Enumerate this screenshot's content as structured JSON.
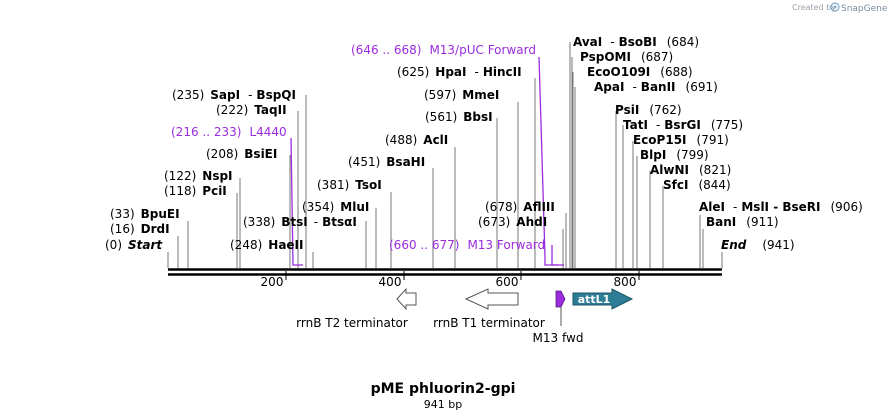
{
  "header": {
    "credit_text": "Created by",
    "brand": "SnapGene"
  },
  "plasmid": {
    "name": "pME phluorin2-gpi",
    "length_label": "941 bp"
  },
  "ruler": {
    "ticks": [
      "200",
      "400",
      "600",
      "800"
    ]
  },
  "enzymes": [
    {
      "pos": "(0)",
      "name": "Start",
      "suffix": "",
      "sep": ""
    },
    {
      "pos": "(16)",
      "name": "DrdI",
      "suffix": "",
      "sep": ""
    },
    {
      "pos": "(33)",
      "name": "BpuEI",
      "suffix": "",
      "sep": ""
    },
    {
      "pos": "(118)",
      "name": "PciI",
      "suffix": "",
      "sep": ""
    },
    {
      "pos": "(122)",
      "name": "NspI",
      "suffix": "",
      "sep": ""
    },
    {
      "pos": "(208)",
      "name": "BsiEI",
      "suffix": "",
      "sep": ""
    },
    {
      "pos": "(222)",
      "name": "TaqII",
      "suffix": "",
      "sep": ""
    },
    {
      "pos": "(235)",
      "name": "SapI",
      "suffix": "BspQI",
      "sep": "-"
    },
    {
      "pos": "(248)",
      "name": "HaeII",
      "suffix": "",
      "sep": ""
    },
    {
      "pos": "(338)",
      "name": "BtsI",
      "suffix": "BtsαI",
      "sep": "-"
    },
    {
      "pos": "(354)",
      "name": "MluI",
      "suffix": "",
      "sep": ""
    },
    {
      "pos": "(381)",
      "name": "TsoI",
      "suffix": "",
      "sep": ""
    },
    {
      "pos": "(451)",
      "name": "BsaHI",
      "suffix": "",
      "sep": ""
    },
    {
      "pos": "(488)",
      "name": "AclI",
      "suffix": "",
      "sep": ""
    },
    {
      "pos": "(561)",
      "name": "BbsI",
      "suffix": "",
      "sep": ""
    },
    {
      "pos": "(597)",
      "name": "MmeI",
      "suffix": "",
      "sep": ""
    },
    {
      "pos": "(625)",
      "name": "HpaI",
      "suffix": "HincII",
      "sep": "-"
    },
    {
      "pos": "(673)",
      "name": "AhdI",
      "suffix": "",
      "sep": ""
    },
    {
      "pos": "(678)",
      "name": "AflIII",
      "suffix": "",
      "sep": ""
    },
    {
      "pos": "(684)",
      "name": "AvaI",
      "suffix": "BsoBI",
      "sep": "-"
    },
    {
      "pos": "(687)",
      "name": "PspOMI",
      "suffix": "",
      "sep": ""
    },
    {
      "pos": "(688)",
      "name": "EcoO109I",
      "suffix": "",
      "sep": ""
    },
    {
      "pos": "(691)",
      "name": "ApaI",
      "suffix": "BanII",
      "sep": "-"
    },
    {
      "pos": "(762)",
      "name": "PsiI",
      "suffix": "",
      "sep": ""
    },
    {
      "pos": "(775)",
      "name": "TatI",
      "suffix": "BsrGI",
      "sep": "-"
    },
    {
      "pos": "(791)",
      "name": "EcoP15I",
      "suffix": "",
      "sep": ""
    },
    {
      "pos": "(799)",
      "name": "BlpI",
      "suffix": "",
      "sep": ""
    },
    {
      "pos": "(821)",
      "name": "AlwNI",
      "suffix": "",
      "sep": ""
    },
    {
      "pos": "(844)",
      "name": "SfcI",
      "suffix": "",
      "sep": ""
    },
    {
      "pos": "(906)",
      "name": "AleI",
      "suffix": "MslI  -  BseRI",
      "sep": "-"
    },
    {
      "pos": "(911)",
      "name": "BanI",
      "suffix": "",
      "sep": ""
    },
    {
      "pos": "(941)",
      "name": "End",
      "suffix": "",
      "sep": ""
    }
  ],
  "primers": [
    {
      "range": "(646 .. 668)",
      "name": "M13/pUC Forward"
    },
    {
      "range": "(216 .. 233)",
      "name": "L4440"
    },
    {
      "range": "(660 .. 677)",
      "name": "M13 Forward"
    }
  ],
  "features": [
    {
      "name": "rrnB T2 terminator",
      "direction": "reverse"
    },
    {
      "name": "rrnB T1 terminator",
      "direction": "reverse"
    },
    {
      "name": "M13 fwd",
      "direction": "forward"
    },
    {
      "name": "attL1",
      "direction": "forward"
    }
  ],
  "colors": {
    "primer": "#9b2cde",
    "attL1_fill": "#2e7d96",
    "m13fwd_fill": "#9b2cde",
    "terminator_fill": "#ffffff",
    "backbone": "#000000",
    "credit": "#9aa3ad"
  }
}
